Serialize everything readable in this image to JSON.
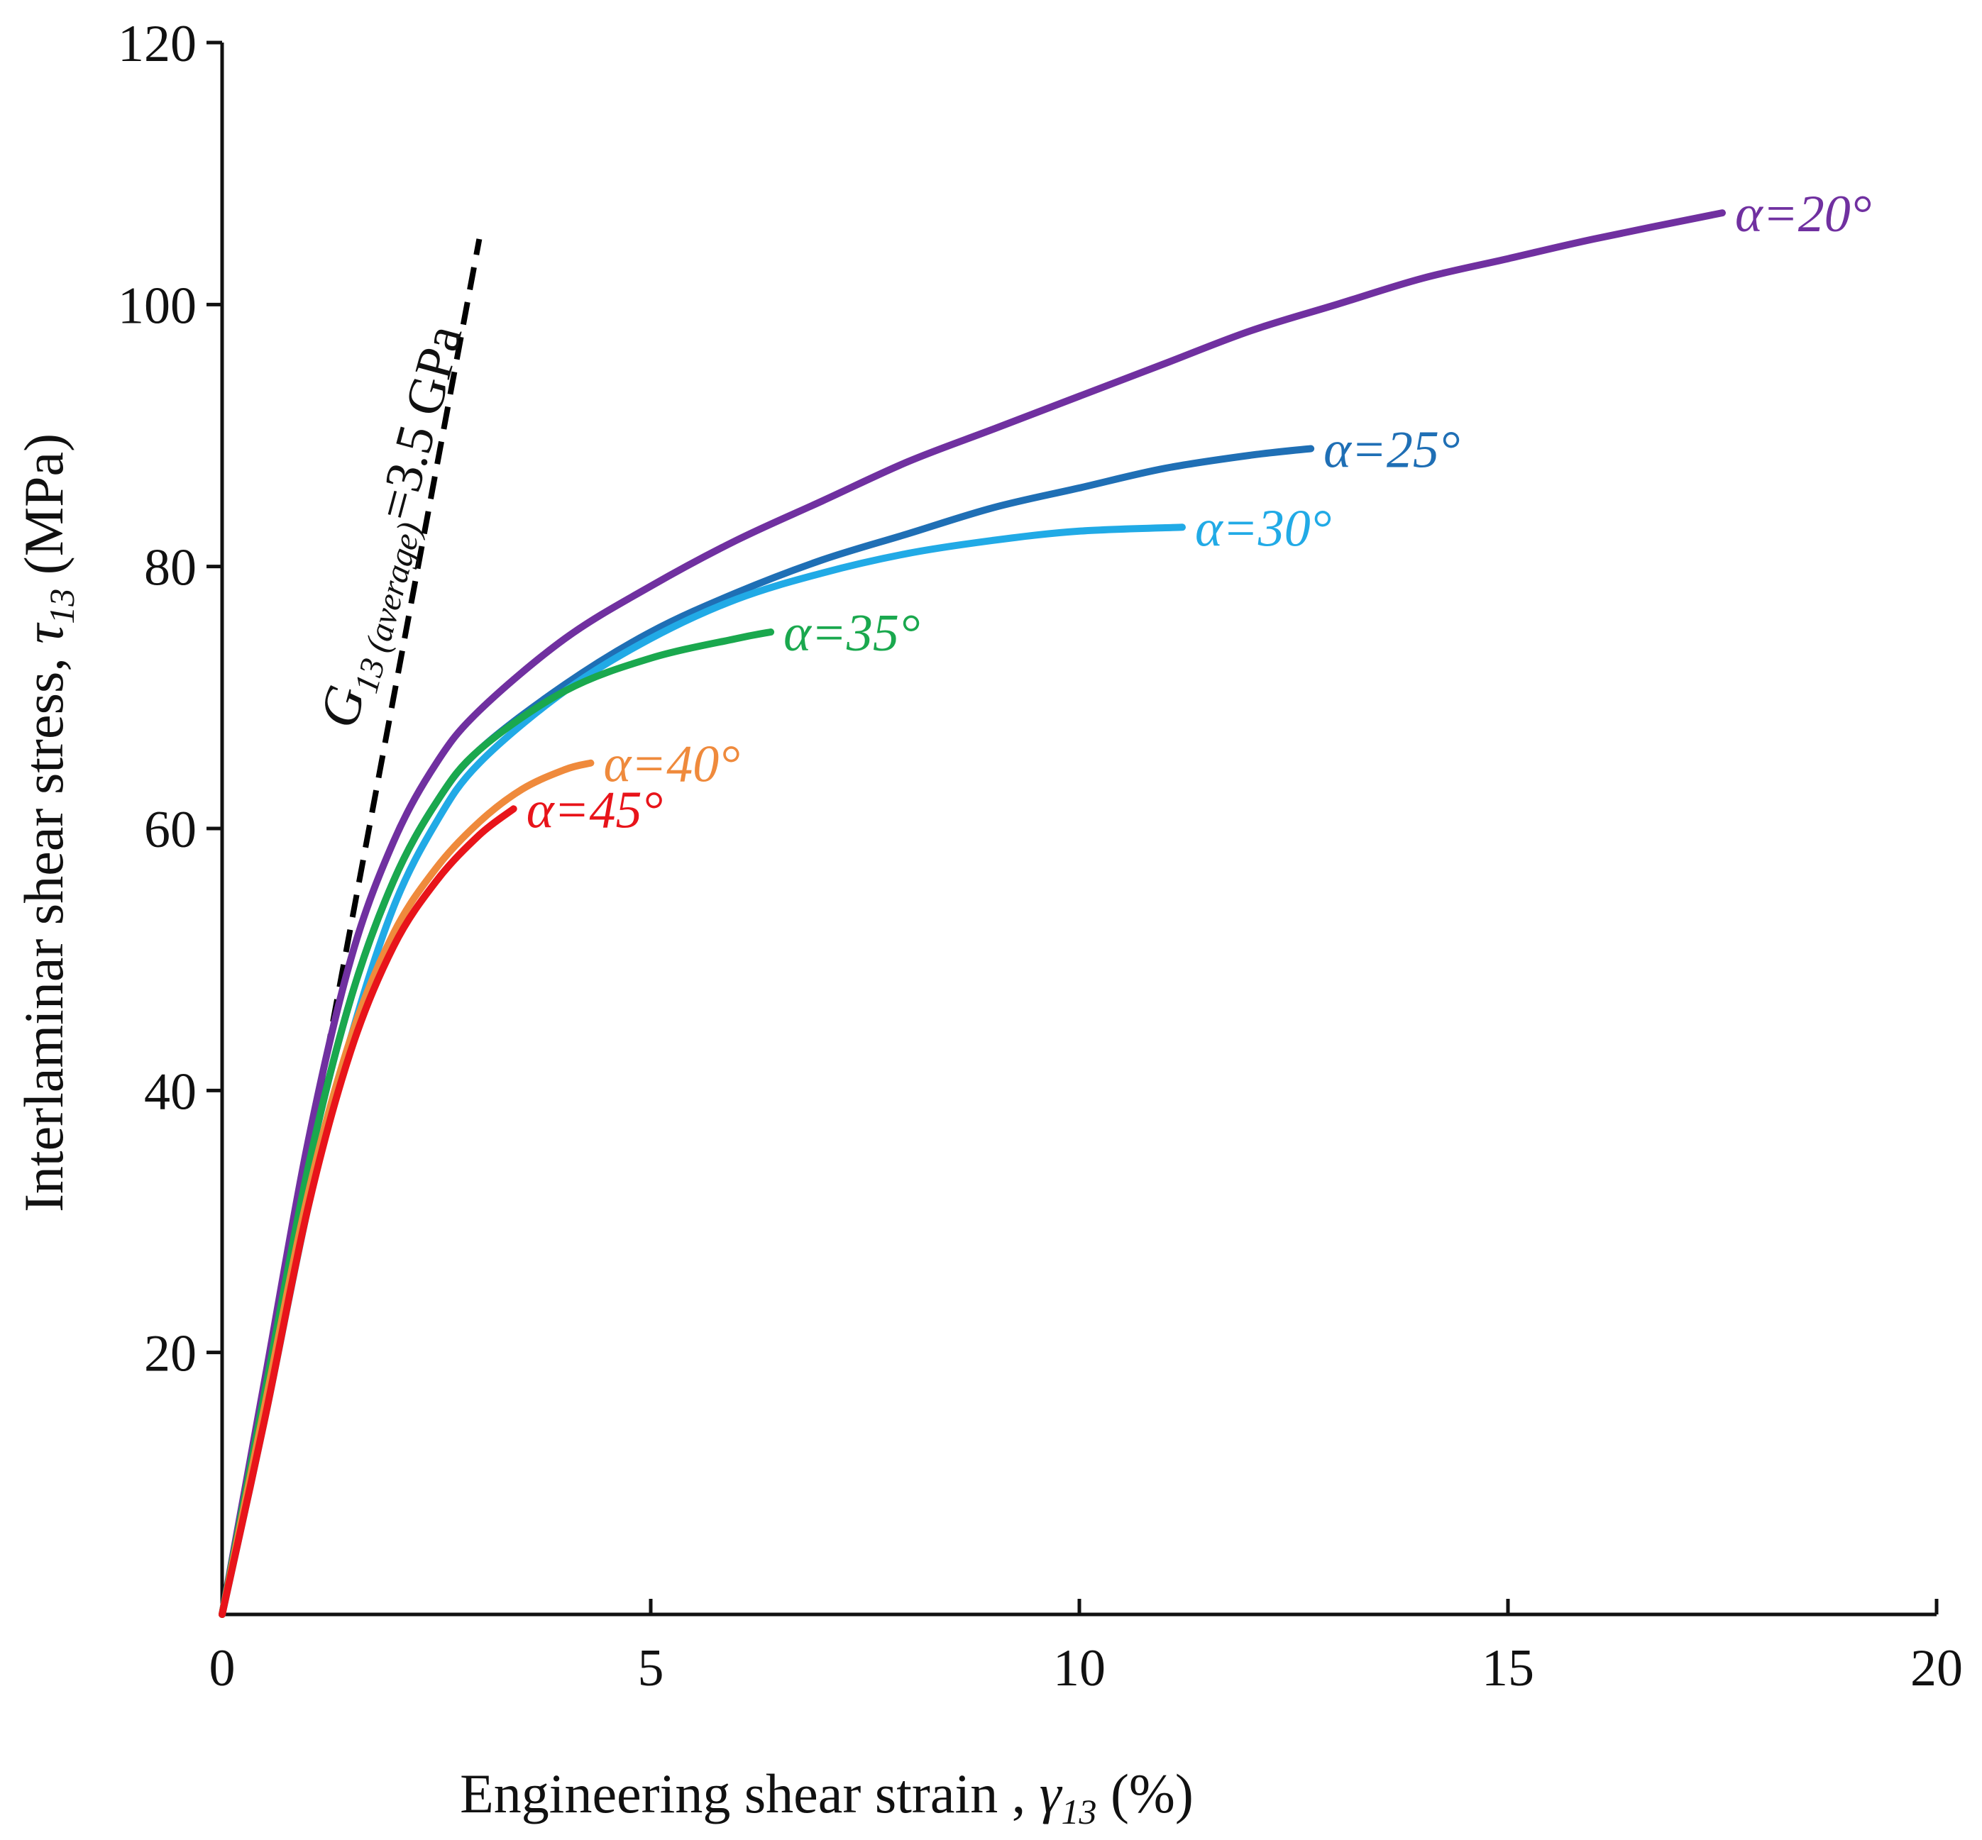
{
  "chart_data": {
    "type": "line",
    "title": "",
    "xlabel": {
      "main": "Engineering shear strain , ",
      "symbol": "γ",
      "subscript": "13",
      "unit": " (%)"
    },
    "ylabel": {
      "main": "Interlaminar shear stress, ",
      "symbol": "τ",
      "subscript": "13",
      "unit": " (MPa)"
    },
    "xlim": [
      0,
      20
    ],
    "ylim": [
      0,
      120
    ],
    "xticks": [
      0,
      5,
      10,
      15,
      20
    ],
    "yticks": [
      20,
      40,
      60,
      80,
      100,
      120
    ],
    "xtick_labels": [
      "0",
      "5",
      "10",
      "15",
      "20"
    ],
    "ytick_labels": [
      "20",
      "40",
      "60",
      "80",
      "100",
      "120"
    ],
    "grid": false,
    "reference_line": {
      "label_main": "G",
      "label_sub": "13 (average)",
      "label_value": "=3.5 GPa",
      "style": "dashed",
      "color": "#000000",
      "points": [
        [
          0,
          0
        ],
        [
          3.0,
          105
        ]
      ]
    },
    "series": [
      {
        "name": "α=20°",
        "color": "#7030a0",
        "points": [
          [
            0,
            0
          ],
          [
            0.5,
            18
          ],
          [
            1,
            36
          ],
          [
            1.5,
            50
          ],
          [
            2,
            59
          ],
          [
            2.5,
            65
          ],
          [
            3,
            69
          ],
          [
            4,
            74.5
          ],
          [
            5,
            78.5
          ],
          [
            6,
            82
          ],
          [
            7,
            85
          ],
          [
            8,
            88
          ],
          [
            9,
            90.5
          ],
          [
            10,
            93
          ],
          [
            11,
            95.5
          ],
          [
            12,
            98
          ],
          [
            13,
            100
          ],
          [
            14,
            102
          ],
          [
            15,
            103.5
          ],
          [
            16,
            105
          ],
          [
            17.5,
            107
          ]
        ]
      },
      {
        "name": "α=25°",
        "color": "#1f6fb5",
        "points": [
          [
            0,
            0
          ],
          [
            0.5,
            17
          ],
          [
            1,
            34
          ],
          [
            1.5,
            47
          ],
          [
            2,
            56
          ],
          [
            2.5,
            62
          ],
          [
            3,
            66
          ],
          [
            4,
            71
          ],
          [
            5,
            75
          ],
          [
            6,
            78
          ],
          [
            7,
            80.5
          ],
          [
            8,
            82.5
          ],
          [
            9,
            84.5
          ],
          [
            10,
            86
          ],
          [
            11,
            87.5
          ],
          [
            12,
            88.5
          ],
          [
            12.7,
            89
          ]
        ]
      },
      {
        "name": "α=30°",
        "color": "#21aae6",
        "points": [
          [
            0,
            0
          ],
          [
            0.5,
            15
          ],
          [
            1,
            31
          ],
          [
            1.5,
            44
          ],
          [
            2,
            54
          ],
          [
            2.5,
            60.5
          ],
          [
            3,
            65
          ],
          [
            4,
            70.5
          ],
          [
            5,
            74.5
          ],
          [
            6,
            77.5
          ],
          [
            7,
            79.5
          ],
          [
            8,
            81
          ],
          [
            9,
            82
          ],
          [
            10,
            82.7
          ],
          [
            11.2,
            83
          ]
        ]
      },
      {
        "name": "α=35°",
        "color": "#1aa84e",
        "points": [
          [
            0,
            0
          ],
          [
            0.5,
            17
          ],
          [
            1,
            34
          ],
          [
            1.5,
            47
          ],
          [
            2,
            56
          ],
          [
            2.5,
            62
          ],
          [
            3,
            66
          ],
          [
            4,
            70.5
          ],
          [
            5,
            73
          ],
          [
            6,
            74.5
          ],
          [
            6.4,
            75
          ]
        ]
      },
      {
        "name": "α=40°",
        "color": "#ef8a3c",
        "points": [
          [
            0,
            0
          ],
          [
            0.5,
            16
          ],
          [
            1,
            32
          ],
          [
            1.5,
            44
          ],
          [
            2,
            52
          ],
          [
            2.5,
            57
          ],
          [
            3,
            60.5
          ],
          [
            3.5,
            63
          ],
          [
            4,
            64.5
          ],
          [
            4.3,
            65
          ]
        ]
      },
      {
        "name": "α=45°",
        "color": "#e8141a",
        "points": [
          [
            0,
            0
          ],
          [
            0.5,
            15
          ],
          [
            1,
            31
          ],
          [
            1.5,
            43
          ],
          [
            2,
            51
          ],
          [
            2.5,
            56
          ],
          [
            3,
            59.5
          ],
          [
            3.4,
            61.5
          ]
        ]
      }
    ]
  }
}
